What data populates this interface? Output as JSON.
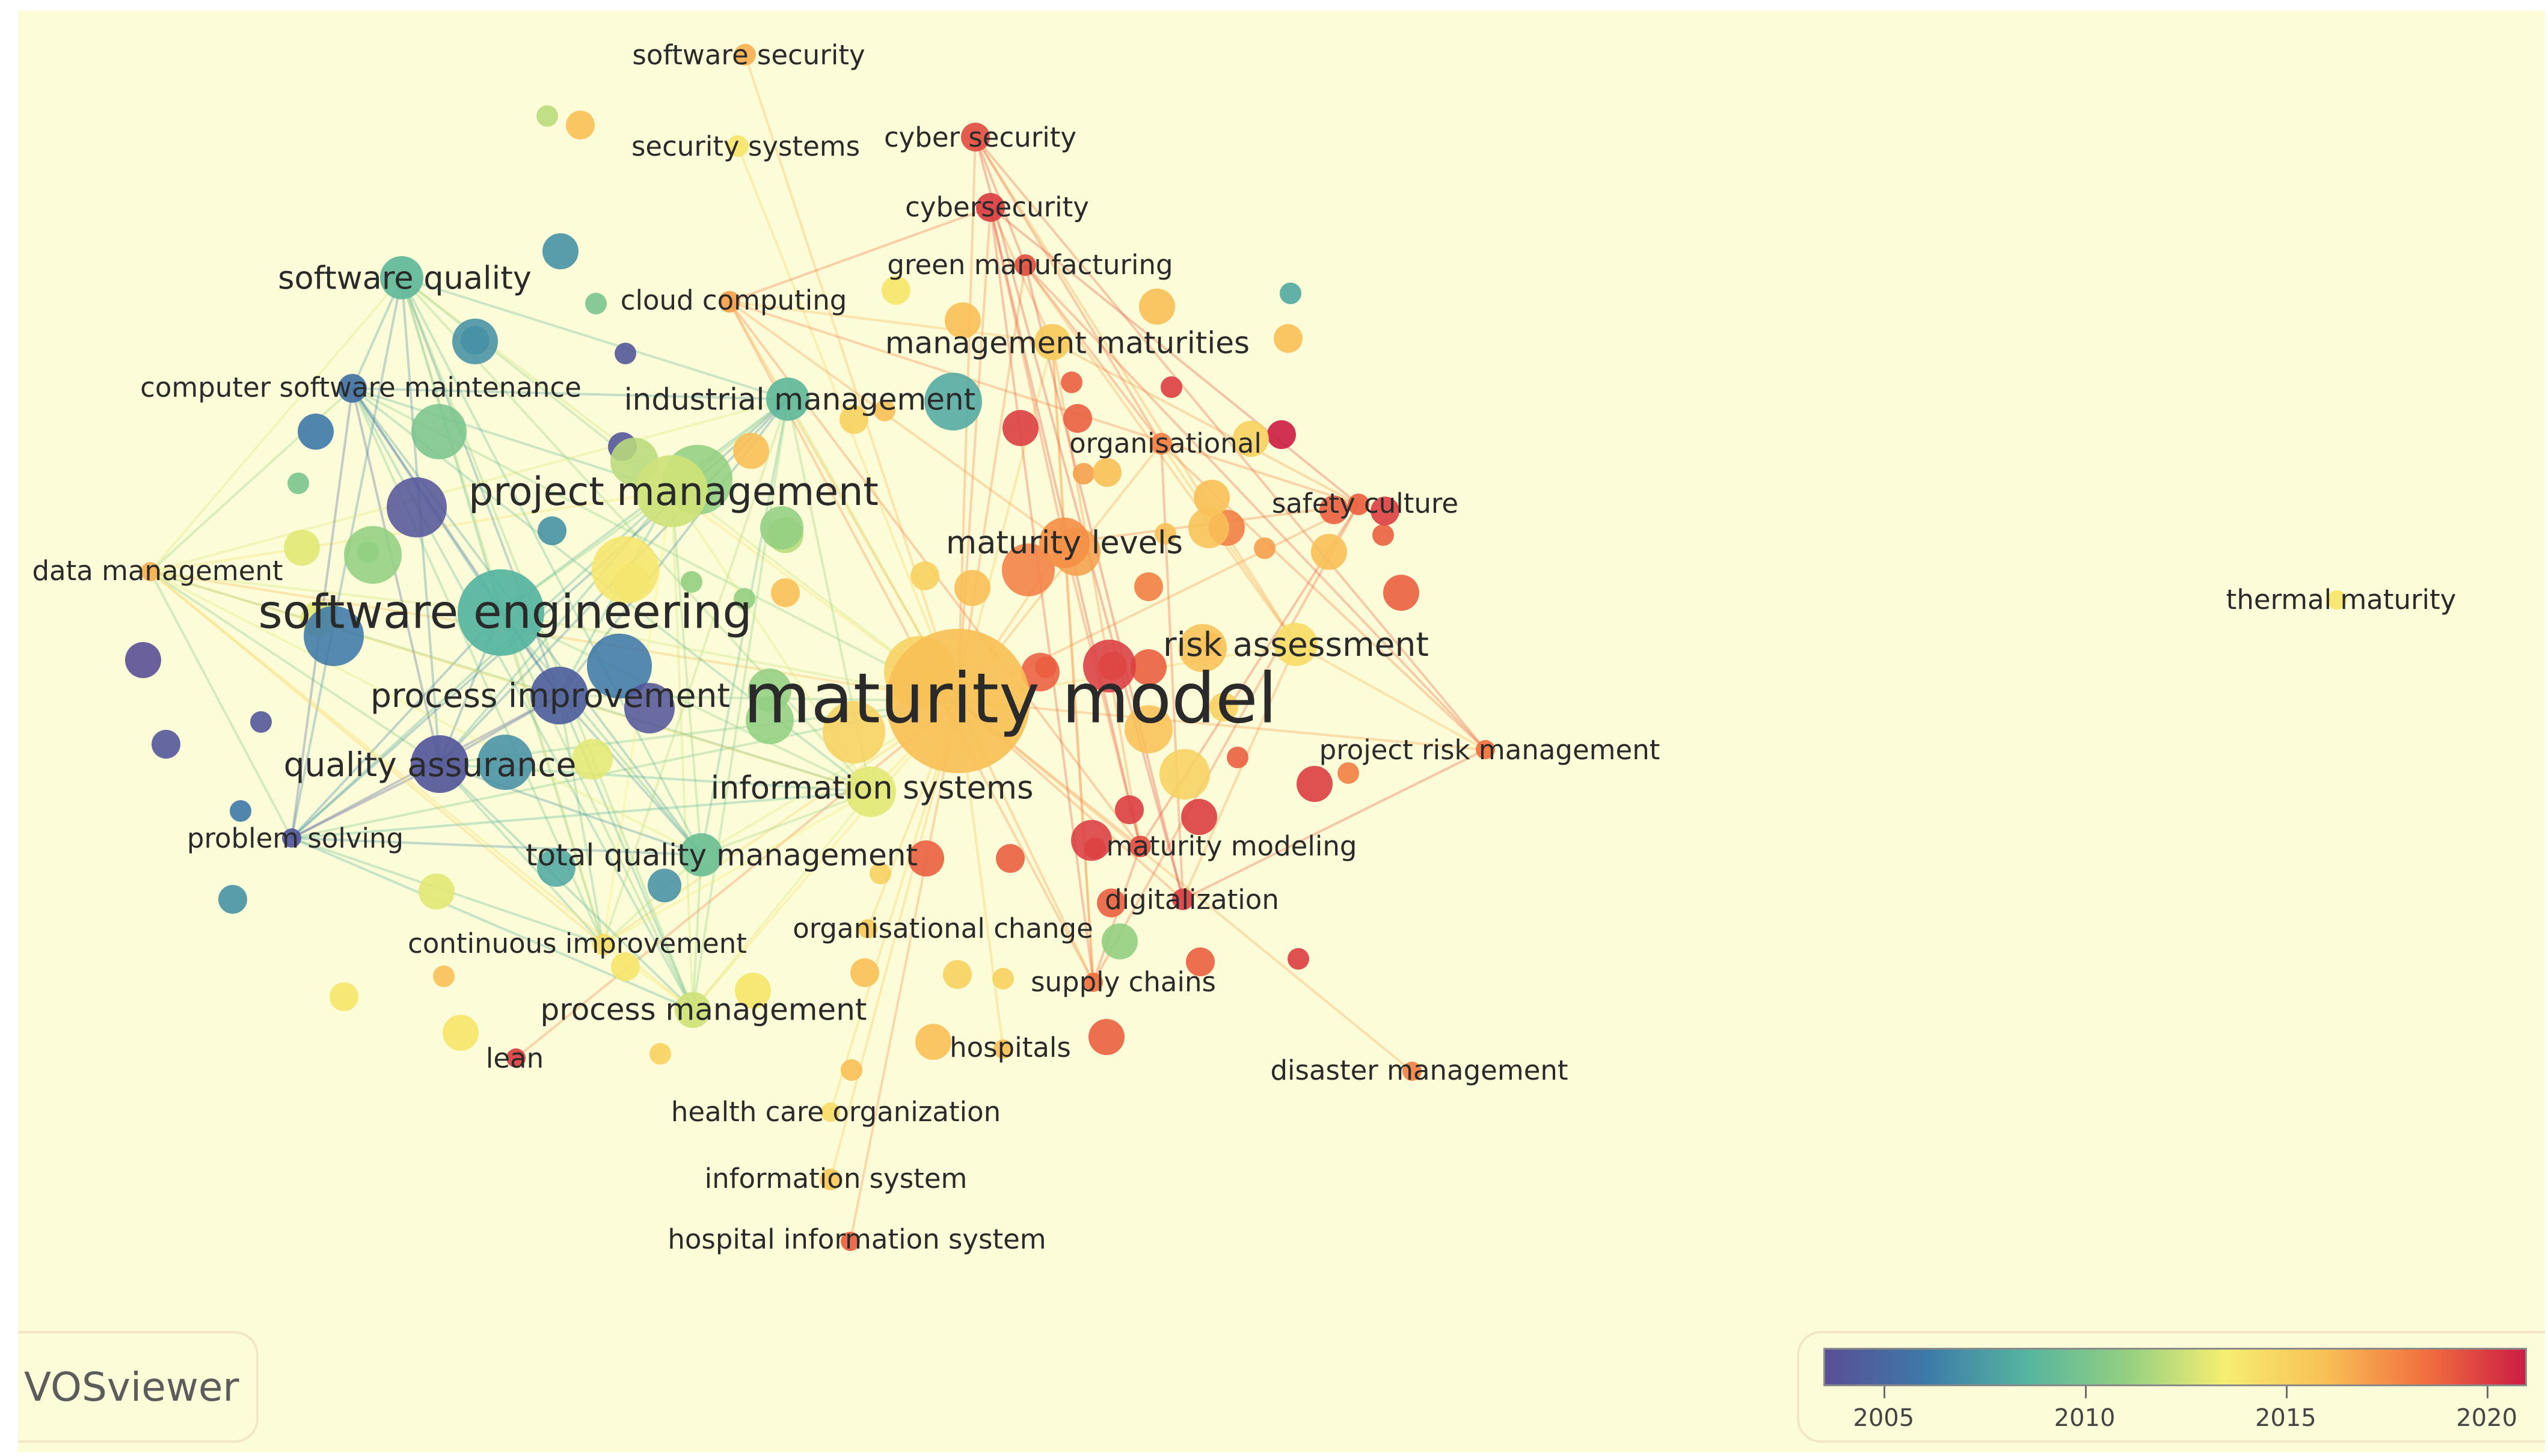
{
  "app": {
    "brand": "VOSviewer"
  },
  "legend": {
    "ticks": [
      {
        "year": 2005,
        "label": "2005"
      },
      {
        "year": 2010,
        "label": "2010"
      },
      {
        "year": 2015,
        "label": "2015"
      },
      {
        "year": 2020,
        "label": "2020"
      }
    ],
    "range": [
      2003.5,
      2021
    ],
    "palette": [
      "#5a4f96",
      "#3d79a8",
      "#55b4a0",
      "#92cf82",
      "#f6ee72",
      "#f8c056",
      "#f1703f",
      "#cc1c44"
    ]
  },
  "network": {
    "nodes": [
      {
        "id": "maturity-model",
        "label": "maturity model",
        "year": 2016.0,
        "weight": 10
      },
      {
        "id": "software-engineering",
        "label": "software engineering",
        "year": 2008.5,
        "weight": 6
      },
      {
        "id": "project-management",
        "label": "project management",
        "year": 2012.5,
        "weight": 5
      },
      {
        "id": "process-improvement",
        "label": "process improvement",
        "year": 2004.5,
        "weight": 4
      },
      {
        "id": "quality-assurance",
        "label": "quality assurance",
        "year": 2004.0,
        "weight": 4
      },
      {
        "id": "information-systems",
        "label": "information systems",
        "year": 2013.0,
        "weight": 3.5
      },
      {
        "id": "total-quality-management",
        "label": "total quality management",
        "year": 2009.5,
        "weight": 3
      },
      {
        "id": "maturity-levels",
        "label": "maturity levels",
        "year": 2017.5,
        "weight": 3.5
      },
      {
        "id": "risk-assessment",
        "label": "risk assessment",
        "year": 2014.5,
        "weight": 3
      },
      {
        "id": "software-quality",
        "label": "software quality",
        "year": 2009.0,
        "weight": 3
      },
      {
        "id": "industrial-management",
        "label": "industrial management",
        "year": 2009.0,
        "weight": 3
      },
      {
        "id": "management-maturities",
        "label": "management maturities",
        "year": 2015.5,
        "weight": 2.5
      },
      {
        "id": "process-management",
        "label": "process management",
        "year": 2012.5,
        "weight": 2.5
      },
      {
        "id": "cyber-security",
        "label": "cyber security",
        "year": 2019.5,
        "weight": 2
      },
      {
        "id": "cybersecurity",
        "label": "cybersecurity",
        "year": 2020.0,
        "weight": 2
      },
      {
        "id": "security-systems",
        "label": "security systems",
        "year": 2014.0,
        "weight": 1.5
      },
      {
        "id": "software-security",
        "label": "software security",
        "year": 2016.5,
        "weight": 1.5
      },
      {
        "id": "cloud-computing",
        "label": "cloud computing",
        "year": 2017.0,
        "weight": 1.5
      },
      {
        "id": "green-manufacturing",
        "label": "green manufacturing",
        "year": 2019.5,
        "weight": 1.5
      },
      {
        "id": "computer-software-maintenance",
        "label": "computer software maintenance",
        "year": 2005.5,
        "weight": 2
      },
      {
        "id": "organisational",
        "label": "organisational",
        "year": 2018.0,
        "weight": 1.5
      },
      {
        "id": "safety-culture",
        "label": "safety culture",
        "year": 2019.0,
        "weight": 1.5
      },
      {
        "id": "data-management",
        "label": "data management",
        "year": 2016.5,
        "weight": 1.2
      },
      {
        "id": "thermal-maturity",
        "label": "thermal maturity",
        "year": 2014.0,
        "weight": 1.2
      },
      {
        "id": "project-risk-management",
        "label": "project risk management",
        "year": 2018.5,
        "weight": 1.2
      },
      {
        "id": "maturity-modeling",
        "label": "maturity modeling",
        "year": 2019.5,
        "weight": 1.5
      },
      {
        "id": "problem-solving",
        "label": "problem solving",
        "year": 2004.0,
        "weight": 1.2
      },
      {
        "id": "digitalization",
        "label": "digitalization",
        "year": 2020.0,
        "weight": 1.5
      },
      {
        "id": "organisational-change",
        "label": "organisational change",
        "year": 2015.5,
        "weight": 1.2
      },
      {
        "id": "continuous-improvement",
        "label": "continuous improvement",
        "year": 2014.5,
        "weight": 1.5
      },
      {
        "id": "supply-chains",
        "label": "supply chains",
        "year": 2018.5,
        "weight": 1.2
      },
      {
        "id": "hospitals",
        "label": "hospitals",
        "year": 2016.0,
        "weight": 1.2
      },
      {
        "id": "lean",
        "label": "lean",
        "year": 2020.0,
        "weight": 1.2
      },
      {
        "id": "disaster-management",
        "label": "disaster management",
        "year": 2018.0,
        "weight": 1.2
      },
      {
        "id": "health-care-organization",
        "label": "health care organization",
        "year": 2014.5,
        "weight": 1.2
      },
      {
        "id": "information-system",
        "label": "information system",
        "year": 2015.5,
        "weight": 1.5
      },
      {
        "id": "hospital-information-system",
        "label": "hospital information system",
        "year": 2019.0,
        "weight": 1.2
      }
    ]
  }
}
